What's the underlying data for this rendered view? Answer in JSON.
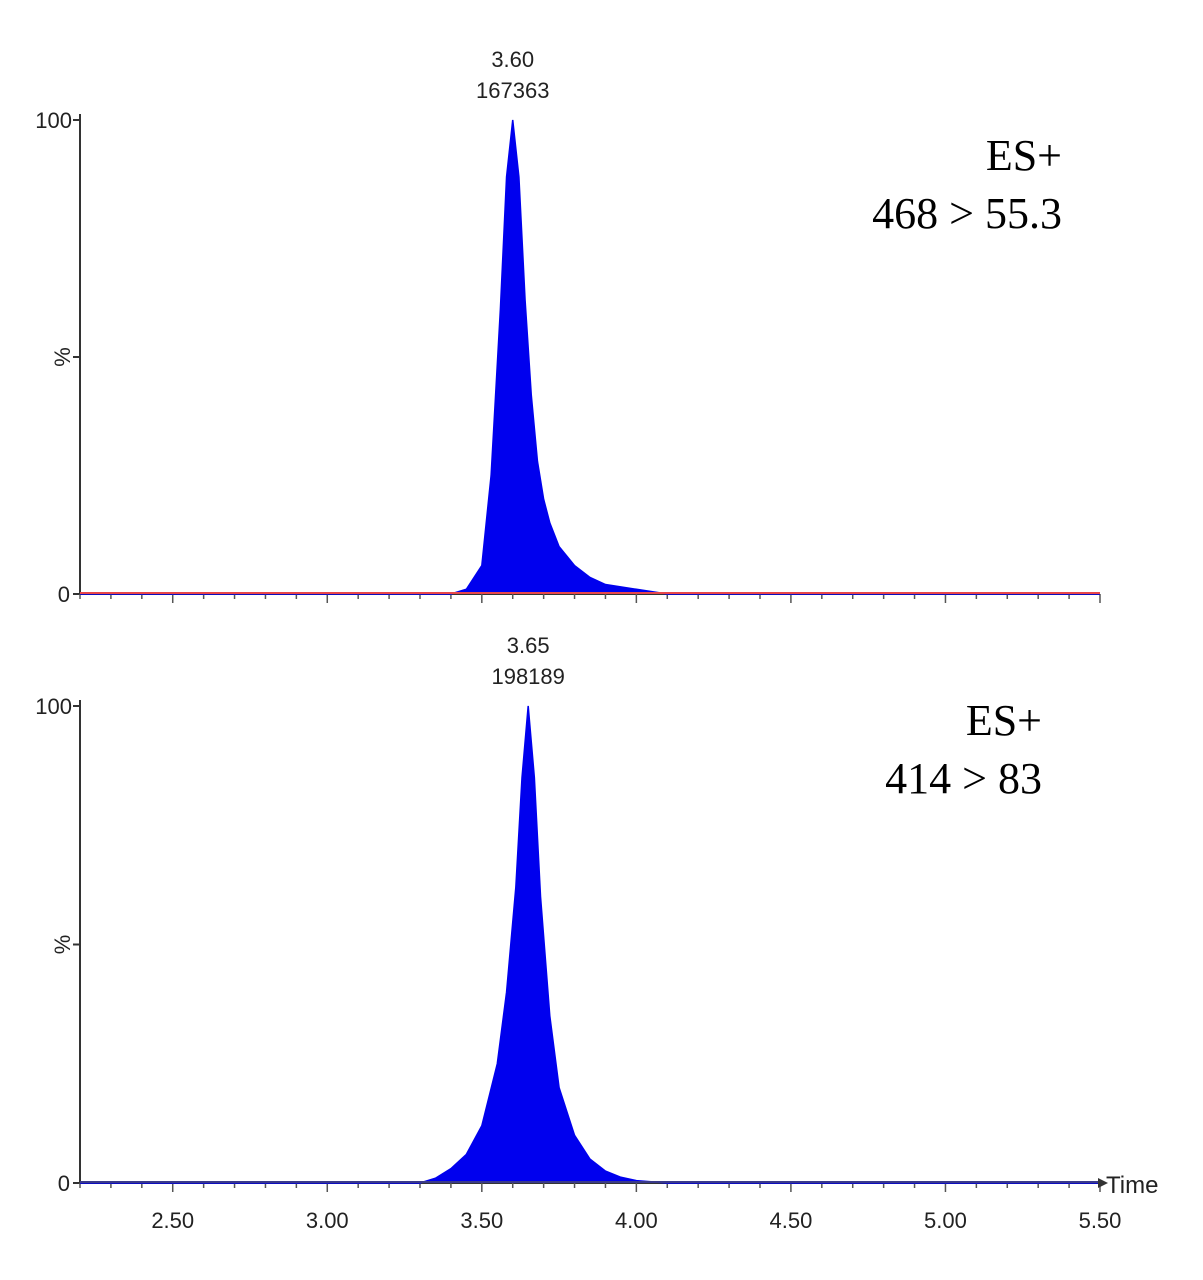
{
  "chart_data": [
    {
      "type": "area",
      "panel": "top",
      "ion_mode": "ES+",
      "transition": "468 > 55.3",
      "ylabel": "%",
      "ylim": [
        0,
        100
      ],
      "y_ticks": [
        "0",
        "100"
      ],
      "xlim": [
        2.2,
        5.5
      ],
      "peak": {
        "rt": 3.6,
        "rt_label": "3.60",
        "area_label": "167363"
      },
      "x": [
        2.2,
        3.4,
        3.45,
        3.5,
        3.53,
        3.56,
        3.58,
        3.6,
        3.62,
        3.64,
        3.66,
        3.68,
        3.7,
        3.72,
        3.75,
        3.8,
        3.85,
        3.9,
        4.0,
        4.1,
        5.5
      ],
      "y": [
        0,
        0,
        1,
        6,
        25,
        60,
        88,
        100,
        88,
        62,
        42,
        28,
        20,
        15,
        10,
        6,
        3.5,
        2,
        1,
        0,
        0
      ],
      "fill_color": "#0000ee",
      "line_color": "#e8474a"
    },
    {
      "type": "area",
      "panel": "bottom",
      "ion_mode": "ES+",
      "transition": "414 > 83",
      "ylabel": "%",
      "ylim": [
        0,
        100
      ],
      "y_ticks": [
        "0",
        "100"
      ],
      "xlabel": "Time",
      "xlim": [
        2.2,
        5.5
      ],
      "x_ticks": [
        "2.50",
        "3.00",
        "3.50",
        "4.00",
        "4.50",
        "5.00",
        "5.50"
      ],
      "x_tick_values": [
        2.5,
        3.0,
        3.5,
        4.0,
        4.5,
        5.0,
        5.5
      ],
      "peak": {
        "rt": 3.65,
        "rt_label": "3.65",
        "area_label": "198189"
      },
      "x": [
        2.2,
        3.3,
        3.35,
        3.4,
        3.45,
        3.5,
        3.55,
        3.58,
        3.61,
        3.63,
        3.65,
        3.67,
        3.69,
        3.72,
        3.75,
        3.8,
        3.85,
        3.9,
        3.95,
        4.0,
        4.1,
        5.5
      ],
      "y": [
        0,
        0,
        1,
        3,
        6,
        12,
        25,
        40,
        62,
        85,
        100,
        85,
        60,
        35,
        20,
        10,
        5,
        2.5,
        1.2,
        0.5,
        0,
        0
      ],
      "fill_color": "#0000ee",
      "line_color": "#3a3a8a"
    }
  ]
}
